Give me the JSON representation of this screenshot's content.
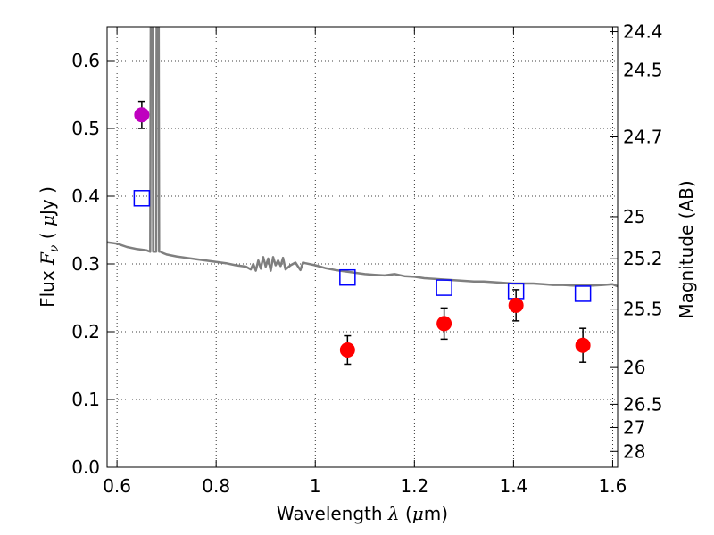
{
  "chart_data": {
    "type": "scatter",
    "title": "",
    "xlabel": "Wavelength  λ (μm)",
    "ylabel": "Flux  Fν  ( μJy )",
    "ylabel_right": "Magnitude (AB)",
    "xlim": [
      0.58,
      1.61
    ],
    "ylim": [
      0.0,
      0.65
    ],
    "grid": true,
    "x_ticks": [
      0.6,
      0.8,
      1.0,
      1.2,
      1.4,
      1.6
    ],
    "x_tick_labels": [
      "0.6",
      "0.8",
      "1",
      "1.2",
      "1.4",
      "1.6"
    ],
    "y_ticks": [
      0.0,
      0.1,
      0.2,
      0.3,
      0.4,
      0.5,
      0.6
    ],
    "y_tick_labels": [
      "0.0",
      "0.1",
      "0.2",
      "0.3",
      "0.4",
      "0.5",
      "0.6"
    ],
    "right_ticks": [
      {
        "label": "24.4",
        "flux": 0.6427
      },
      {
        "label": "24.5",
        "flux": 0.5861
      },
      {
        "label": "24.7",
        "flux": 0.4875
      },
      {
        "label": "25",
        "flux": 0.3698
      },
      {
        "label": "25.2",
        "flux": 0.3076
      },
      {
        "label": "25.5",
        "flux": 0.2333
      },
      {
        "label": "26",
        "flux": 0.1472
      },
      {
        "label": "26.5",
        "flux": 0.0929
      },
      {
        "label": "27",
        "flux": 0.0586
      },
      {
        "label": "28",
        "flux": 0.0233
      }
    ],
    "series": [
      {
        "kind": "line",
        "color": "#7f7f7f",
        "x": [
          0.58,
          0.6,
          0.62,
          0.64,
          0.66,
          0.667,
          0.668,
          0.672,
          0.673,
          0.679,
          0.68,
          0.684,
          0.685,
          0.689,
          0.69,
          0.7,
          0.72,
          0.74,
          0.76,
          0.78,
          0.8,
          0.82,
          0.84,
          0.86,
          0.87,
          0.875,
          0.88,
          0.885,
          0.89,
          0.895,
          0.9,
          0.905,
          0.91,
          0.915,
          0.92,
          0.925,
          0.93,
          0.935,
          0.94,
          0.95,
          0.96,
          0.97,
          0.975,
          0.98,
          1.0,
          1.02,
          1.04,
          1.06,
          1.08,
          1.1,
          1.12,
          1.14,
          1.16,
          1.18,
          1.2,
          1.22,
          1.24,
          1.26,
          1.28,
          1.3,
          1.32,
          1.34,
          1.36,
          1.38,
          1.4,
          1.42,
          1.44,
          1.46,
          1.48,
          1.5,
          1.52,
          1.54,
          1.56,
          1.58,
          1.6,
          1.61
        ],
        "y": [
          0.332,
          0.33,
          0.325,
          0.322,
          0.32,
          0.318,
          0.66,
          0.66,
          0.318,
          0.318,
          0.66,
          0.66,
          0.318,
          0.318,
          0.317,
          0.314,
          0.311,
          0.309,
          0.307,
          0.305,
          0.303,
          0.301,
          0.298,
          0.296,
          0.292,
          0.3,
          0.29,
          0.305,
          0.293,
          0.31,
          0.296,
          0.308,
          0.29,
          0.31,
          0.298,
          0.305,
          0.297,
          0.309,
          0.292,
          0.298,
          0.302,
          0.291,
          0.302,
          0.301,
          0.298,
          0.294,
          0.291,
          0.289,
          0.287,
          0.285,
          0.284,
          0.283,
          0.285,
          0.282,
          0.281,
          0.279,
          0.278,
          0.277,
          0.276,
          0.275,
          0.274,
          0.274,
          0.273,
          0.272,
          0.271,
          0.271,
          0.271,
          0.27,
          0.269,
          0.269,
          0.268,
          0.268,
          0.268,
          0.269,
          0.27,
          0.267
        ]
      },
      {
        "kind": "squares",
        "color": "#0000ff",
        "x": [
          0.65,
          1.065,
          1.26,
          1.405,
          1.54
        ],
        "y": [
          0.397,
          0.28,
          0.265,
          0.26,
          0.256
        ]
      },
      {
        "kind": "points",
        "color": "#ff0000",
        "x": [
          1.065,
          1.26,
          1.405,
          1.54
        ],
        "y": [
          0.173,
          0.212,
          0.239,
          0.18
        ],
        "err": [
          0.021,
          0.023,
          0.023,
          0.025
        ]
      },
      {
        "kind": "points",
        "color": "#bf00bf",
        "x": [
          0.65
        ],
        "y": [
          0.52
        ],
        "err": [
          0.02
        ]
      }
    ]
  }
}
